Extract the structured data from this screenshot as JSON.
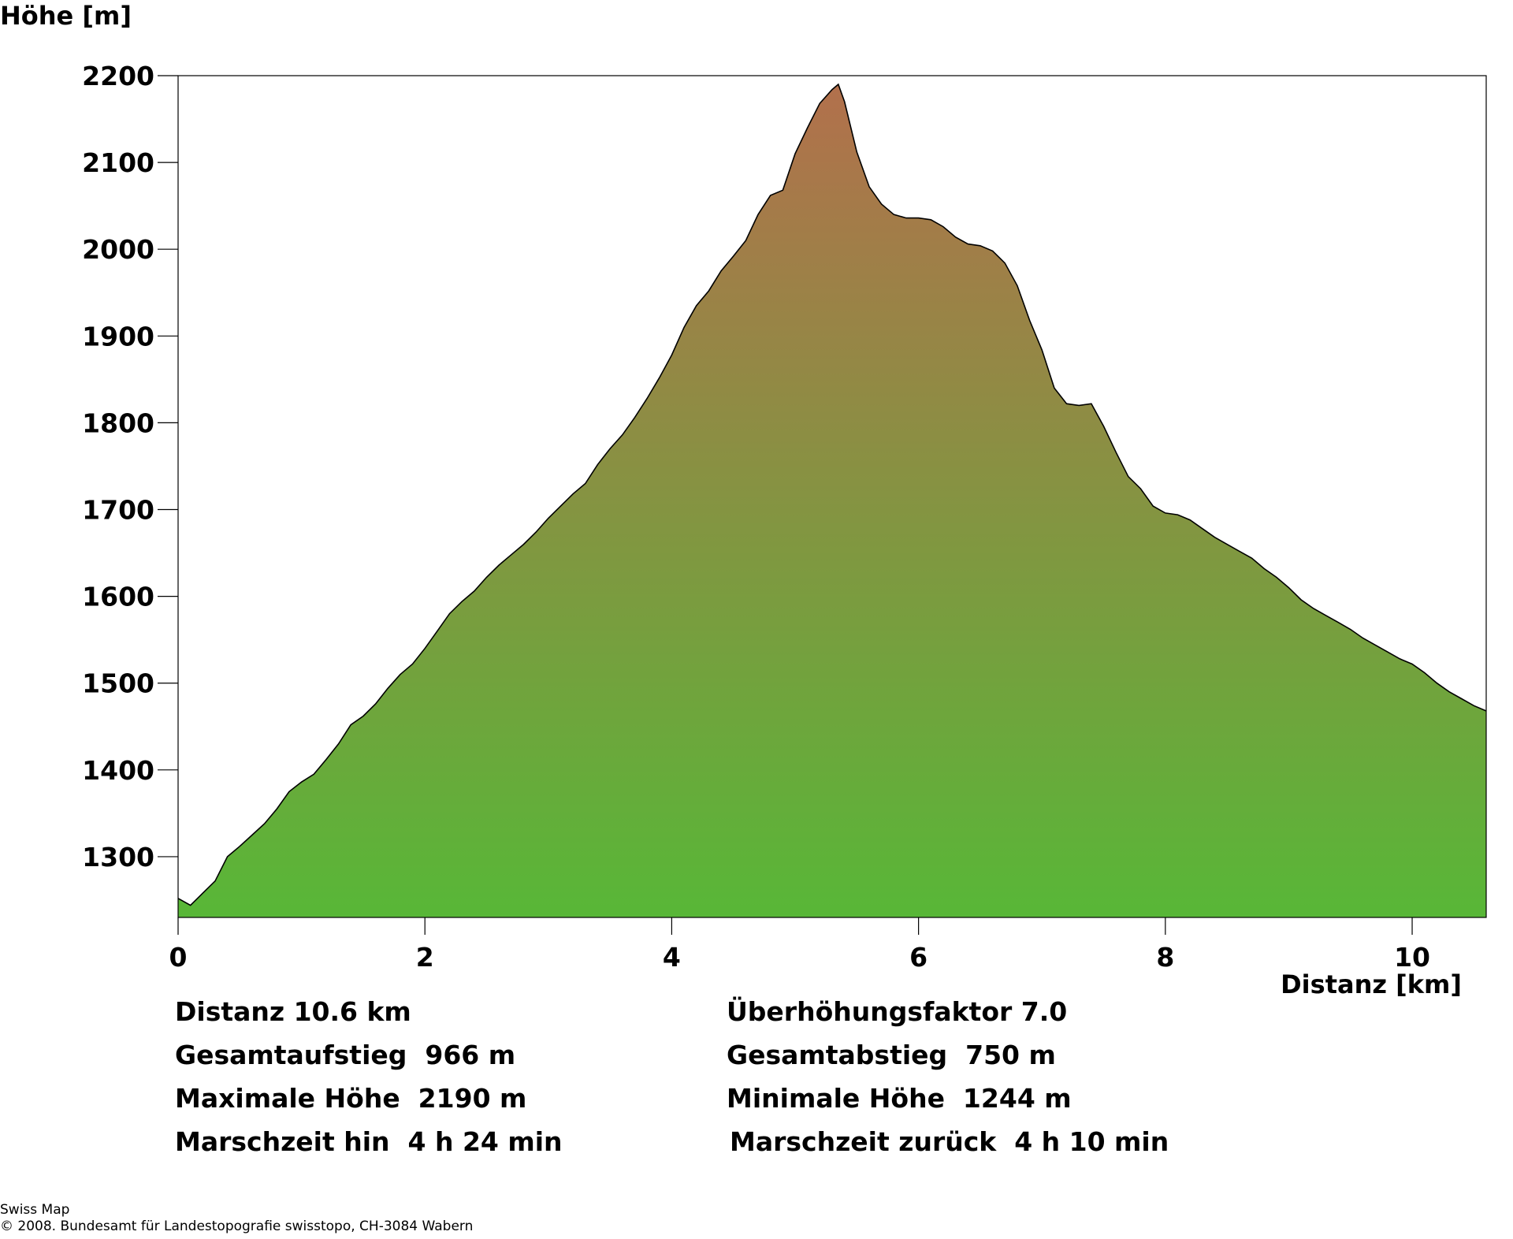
{
  "chart_data": {
    "type": "area",
    "ylabel": "Höhe [m]",
    "xlabel": "Distanz [km]",
    "xlim": [
      0,
      10.6
    ],
    "ylim": [
      1230,
      2200
    ],
    "x_ticks": [
      0,
      2,
      4,
      6,
      8,
      10
    ],
    "y_ticks": [
      1300,
      1400,
      1500,
      1600,
      1700,
      1800,
      1900,
      2000,
      2100,
      2200
    ],
    "grid": false,
    "legend": "none",
    "fill_colors": {
      "top": "#b2704c",
      "bottom": "#58b737"
    },
    "line_color": "#000000",
    "series": [
      {
        "x": [
          0,
          0.1,
          0.2,
          0.3,
          0.4,
          0.5,
          0.6,
          0.7,
          0.8,
          0.9,
          1.0,
          1.1,
          1.2,
          1.3,
          1.4,
          1.5,
          1.6,
          1.7,
          1.8,
          1.9,
          2.0,
          2.1,
          2.2,
          2.3,
          2.4,
          2.5,
          2.6,
          2.7,
          2.8,
          2.9,
          3.0,
          3.1,
          3.2,
          3.3,
          3.4,
          3.5,
          3.6,
          3.7,
          3.8,
          3.9,
          4.0,
          4.1,
          4.2,
          4.3,
          4.4,
          4.5,
          4.6,
          4.7,
          4.8,
          4.9,
          5.0,
          5.1,
          5.2,
          5.3,
          5.35,
          5.4,
          5.5,
          5.6,
          5.7,
          5.8,
          5.9,
          6.0,
          6.1,
          6.2,
          6.3,
          6.4,
          6.5,
          6.6,
          6.7,
          6.8,
          6.9,
          7.0,
          7.1,
          7.2,
          7.3,
          7.4,
          7.5,
          7.6,
          7.7,
          7.8,
          7.9,
          8.0,
          8.1,
          8.2,
          8.3,
          8.4,
          8.5,
          8.6,
          8.7,
          8.8,
          8.9,
          9.0,
          9.1,
          9.2,
          9.3,
          9.4,
          9.5,
          9.6,
          9.7,
          9.8,
          9.9,
          10.0,
          10.1,
          10.2,
          10.3,
          10.4,
          10.5,
          10.6
        ],
        "values": [
          1252,
          1244,
          1258,
          1272,
          1300,
          1312,
          1325,
          1338,
          1355,
          1375,
          1386,
          1395,
          1412,
          1430,
          1452,
          1462,
          1476,
          1494,
          1510,
          1522,
          1540,
          1560,
          1580,
          1594,
          1606,
          1622,
          1636,
          1648,
          1660,
          1674,
          1690,
          1704,
          1718,
          1730,
          1752,
          1770,
          1786,
          1806,
          1828,
          1852,
          1878,
          1910,
          1935,
          1952,
          1975,
          1992,
          2010,
          2040,
          2062,
          2068,
          2110,
          2140,
          2168,
          2184,
          2190,
          2170,
          2112,
          2072,
          2052,
          2040,
          2036,
          2036,
          2034,
          2026,
          2014,
          2006,
          2004,
          1998,
          1984,
          1958,
          1918,
          1884,
          1840,
          1822,
          1820,
          1822,
          1796,
          1766,
          1738,
          1724,
          1704,
          1696,
          1694,
          1688,
          1678,
          1668,
          1660,
          1652,
          1644,
          1632,
          1622,
          1610,
          1596,
          1586,
          1578,
          1570,
          1562,
          1552,
          1544,
          1536,
          1528,
          1522,
          1512,
          1500,
          1490,
          1482,
          1474,
          1468
        ]
      }
    ]
  },
  "stats": {
    "distance": "Distanz 10.6 km",
    "exaggeration": "Überhöhungsfaktor 7.0",
    "ascent": "Gesamtaufstieg  966 m",
    "descent": "Gesamtabstieg  750 m",
    "max_height": "Maximale Höhe  2190 m",
    "min_height": "Minimale Höhe  1244 m",
    "time_there": "Marschzeit hin  4 h 24 min",
    "time_back": "Marschzeit zurück  4 h 10 min"
  },
  "credits": {
    "line1": "Swiss Map",
    "line2": "© 2008. Bundesamt für Landestopografie swisstopo, CH-3084 Wabern"
  }
}
